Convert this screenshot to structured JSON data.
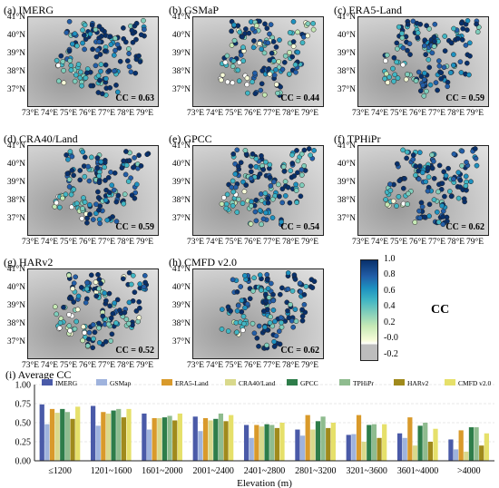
{
  "panels": [
    {
      "title": "(a) IMERG",
      "cc": "CC = 0.63"
    },
    {
      "title": "(b) GSMaP",
      "cc": "CC = 0.44"
    },
    {
      "title": "(c) ERA5-Land",
      "cc": "CC = 0.59"
    },
    {
      "title": "(d) CRA40/Land",
      "cc": "CC = 0.59"
    },
    {
      "title": "(e) GPCC",
      "cc": "CC = 0.54"
    },
    {
      "title": "(f) TPHiPr",
      "cc": "CC = 0.62"
    },
    {
      "title": "(g) HARv2",
      "cc": "CC = 0.52"
    },
    {
      "title": "(h) CMFD v2.0",
      "cc": "CC = 0.62"
    }
  ],
  "map_axes": {
    "lat_labels": [
      "41°N",
      "40°N",
      "39°N",
      "38°N",
      "37°N"
    ],
    "lon_labels": [
      "73°E",
      "74°E",
      "75°E",
      "76°E",
      "77°E",
      "78°E",
      "79°E"
    ]
  },
  "colorbar": {
    "label": "CC",
    "ticks": [
      "1.0",
      "0.8",
      "0.6",
      "0.4",
      "0.2",
      "-0.0",
      "-0.2"
    ]
  },
  "chart_data": {
    "type": "bar",
    "title": "(i) Average CC",
    "xlabel": "Elevation (m)",
    "ylabel": "",
    "ylim": [
      0,
      1.0
    ],
    "yticks": [
      "0.00",
      "0.25",
      "0.50",
      "0.75",
      "1.00"
    ],
    "categories": [
      "≤1200",
      "1201~1600",
      "1601~2000",
      "2001~2400",
      "2401~2800",
      "2801~3200",
      "3201~3600",
      "3601~4000",
      ">4000"
    ],
    "legend_position": "top",
    "series": [
      {
        "name": "IMERG",
        "color": "#4a5aa8",
        "values": [
          0.74,
          0.72,
          0.62,
          0.58,
          0.47,
          0.41,
          0.34,
          0.36,
          0.28
        ]
      },
      {
        "name": "GSMap",
        "color": "#9fb3dd",
        "values": [
          0.48,
          0.46,
          0.41,
          0.39,
          0.3,
          0.33,
          0.35,
          0.3,
          0.15
        ]
      },
      {
        "name": "ERA5-Land",
        "color": "#d99a2b",
        "values": [
          0.68,
          0.64,
          0.56,
          0.56,
          0.47,
          0.6,
          0.6,
          0.57,
          0.4
        ]
      },
      {
        "name": "CRA40/Land",
        "color": "#d9d98c",
        "values": [
          0.63,
          0.62,
          0.56,
          0.53,
          0.45,
          0.41,
          0.25,
          0.2,
          0.12
        ]
      },
      {
        "name": "GPCC",
        "color": "#2e7d4a",
        "values": [
          0.68,
          0.66,
          0.57,
          0.55,
          0.48,
          0.52,
          0.47,
          0.46,
          0.44
        ]
      },
      {
        "name": "TPHiPr",
        "color": "#8fbc8f",
        "values": [
          0.64,
          0.68,
          0.59,
          0.62,
          0.47,
          0.58,
          0.48,
          0.5,
          0.44
        ]
      },
      {
        "name": "HARv2",
        "color": "#a08a1c",
        "values": [
          0.55,
          0.57,
          0.53,
          0.52,
          0.43,
          0.43,
          0.3,
          0.25,
          0.2
        ]
      },
      {
        "name": "CMFD v2.0",
        "color": "#e6e06a",
        "values": [
          0.71,
          0.68,
          0.62,
          0.6,
          0.5,
          0.5,
          0.48,
          0.42,
          0.36
        ]
      }
    ]
  }
}
